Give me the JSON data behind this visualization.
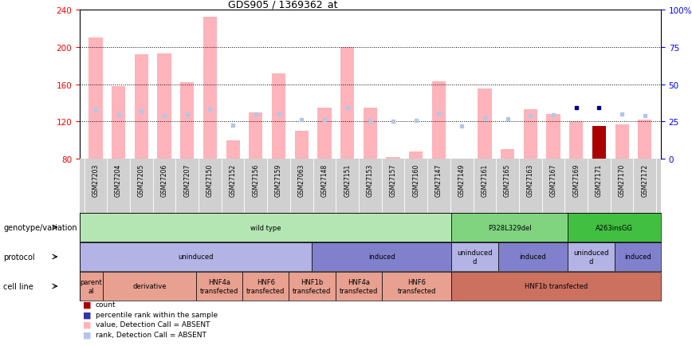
{
  "title": "GDS905 / 1369362_at",
  "samples": [
    "GSM27203",
    "GSM27204",
    "GSM27205",
    "GSM27206",
    "GSM27207",
    "GSM27150",
    "GSM27152",
    "GSM27156",
    "GSM27159",
    "GSM27063",
    "GSM27148",
    "GSM27151",
    "GSM27153",
    "GSM27157",
    "GSM27160",
    "GSM27147",
    "GSM27149",
    "GSM27161",
    "GSM27165",
    "GSM27163",
    "GSM27167",
    "GSM27169",
    "GSM27171",
    "GSM27170",
    "GSM27172"
  ],
  "value_bars": [
    210,
    158,
    192,
    193,
    162,
    232,
    100,
    130,
    172,
    110,
    135,
    200,
    135,
    82,
    88,
    163,
    80,
    155,
    90,
    133,
    128,
    120,
    115,
    117,
    122
  ],
  "rank_markers": [
    132,
    127,
    131,
    126,
    127,
    133,
    116,
    128,
    128,
    122,
    122,
    135,
    121,
    120,
    121,
    129,
    115,
    124,
    123,
    126,
    127,
    135,
    135,
    128,
    126
  ],
  "count_bars": [
    null,
    null,
    null,
    null,
    null,
    null,
    null,
    null,
    null,
    null,
    null,
    null,
    null,
    null,
    null,
    null,
    null,
    null,
    null,
    null,
    null,
    null,
    115,
    null,
    null
  ],
  "count_color": "#aa0000",
  "value_bar_color": "#ffb3ba",
  "rank_marker_color": "#b3c6e8",
  "dark_blue_indices": [
    21,
    22
  ],
  "ylim": [
    80,
    240
  ],
  "yticks": [
    80,
    120,
    160,
    200,
    240
  ],
  "right_ytick_vals": [
    0,
    25,
    50,
    75,
    100
  ],
  "right_ytick_labels": [
    "0",
    "25",
    "50",
    "75",
    "100%"
  ],
  "g_regions": [
    [
      0,
      16,
      "wild type",
      "#b3e6b3"
    ],
    [
      16,
      21,
      "P328L329del",
      "#80d480"
    ],
    [
      21,
      25,
      "A263insGG",
      "#40bf40"
    ]
  ],
  "proto_regions": [
    [
      0,
      10,
      "uninduced",
      "#b3b3e6"
    ],
    [
      10,
      16,
      "induced",
      "#8080cc"
    ],
    [
      16,
      18,
      "uninduced\nd",
      "#b3b3e6"
    ],
    [
      18,
      21,
      "induced",
      "#8080cc"
    ],
    [
      21,
      23,
      "uninduced\nd",
      "#b3b3e6"
    ],
    [
      23,
      25,
      "induced",
      "#8080cc"
    ]
  ],
  "cell_regions": [
    [
      0,
      1,
      "parent\nal",
      "#e8a090"
    ],
    [
      1,
      5,
      "derivative",
      "#e8a090"
    ],
    [
      5,
      7,
      "HNF4a\ntransfected",
      "#e8a090"
    ],
    [
      7,
      9,
      "HNF6\ntransfected",
      "#e8a090"
    ],
    [
      9,
      11,
      "HNF1b\ntransfected",
      "#e8a090"
    ],
    [
      11,
      13,
      "HNF4a\ntransfected",
      "#e8a090"
    ],
    [
      13,
      16,
      "HNF6\ntransfected",
      "#e8a090"
    ],
    [
      16,
      25,
      "HNF1b transfected",
      "#cc7060"
    ]
  ],
  "legend_items": [
    {
      "color": "#aa0000",
      "label": "count"
    },
    {
      "color": "#3333aa",
      "label": "percentile rank within the sample"
    },
    {
      "color": "#ffb3ba",
      "label": "value, Detection Call = ABSENT"
    },
    {
      "color": "#b3c6e8",
      "label": "rank, Detection Call = ABSENT"
    }
  ],
  "row_labels": [
    "genotype/variation",
    "protocol",
    "cell line"
  ],
  "bg_color": "#ffffff",
  "tick_bg": "#d0d0d0"
}
